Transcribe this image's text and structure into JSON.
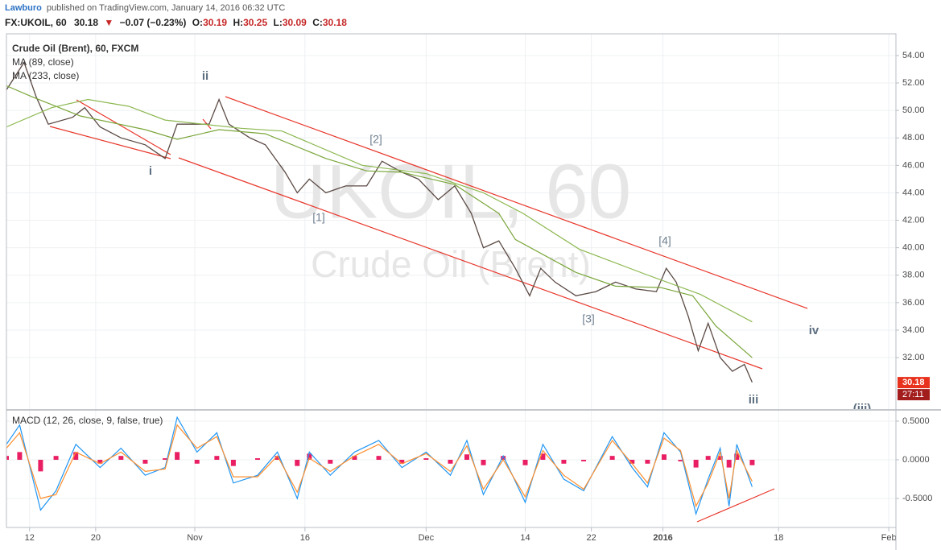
{
  "header": {
    "author": "Lawburo",
    "published": "published on TradingView.com, January 14, 2016 06:32 UTC",
    "symbol": "FX:UKOIL, 60",
    "last": 30.18,
    "arrow": "▼",
    "change": "−0.07 (−0.23%)",
    "ohlc": [
      {
        "label": "O:",
        "value": 30.19
      },
      {
        "label": "H:",
        "value": 30.25
      },
      {
        "label": "L:",
        "value": 30.09
      },
      {
        "label": "C:",
        "value": 30.18
      }
    ]
  },
  "chart_data": [
    {
      "type": "line",
      "watermark": "UKOIL, 60",
      "watermark_subtitle": "Crude Oil (Brent)",
      "xlim": [
        -2.1,
        78.65
      ],
      "ylim": [
        28.25,
        55.58
      ],
      "grid": true,
      "yticks": [
        {
          "value": 32,
          "label": "32.00"
        },
        {
          "value": 34,
          "label": "34.00"
        },
        {
          "value": 36,
          "label": "36.00"
        },
        {
          "value": 38,
          "label": "38.00"
        },
        {
          "value": 40,
          "label": "40.00"
        },
        {
          "value": 42,
          "label": "42.00"
        },
        {
          "value": 44,
          "label": "44.00"
        },
        {
          "value": 46,
          "label": "46.00"
        },
        {
          "value": 48,
          "label": "48.00"
        },
        {
          "value": 50,
          "label": "50.00"
        },
        {
          "value": 52,
          "label": "52.00"
        },
        {
          "value": 54,
          "label": "54.00"
        }
      ],
      "series": [
        {
          "name": "Crude Oil (Brent), 60, FXCM",
          "color": "#5b4a44",
          "x": [
            -2.1,
            -0.5,
            0.6,
            1.7,
            3.9,
            5.0,
            6.4,
            8.3,
            10.5,
            12.3,
            13.4,
            14.8,
            16.3,
            17.2,
            18.1,
            20.0,
            21.4,
            23.2,
            24.3,
            25.4,
            26.9,
            28.7,
            30.6,
            32.0,
            33.8,
            35.3,
            37.1,
            38.6,
            40.1,
            41.2,
            42.6,
            44.1,
            45.4,
            46.4,
            47.7,
            49.6,
            51.4,
            53.2,
            55.0,
            56.9,
            57.8,
            58.7,
            59.8,
            60.7,
            61.6,
            62.7,
            63.8,
            64.9,
            65.6
          ],
          "values": [
            51.5,
            53.5,
            51,
            49,
            49.5,
            50.2,
            48.8,
            48,
            47.5,
            46.5,
            49,
            49,
            49,
            50.8,
            49,
            48,
            47.5,
            45.5,
            44,
            45,
            44,
            44.5,
            44.5,
            46.3,
            45.5,
            45,
            43.5,
            44.5,
            42.5,
            40,
            40.5,
            38.5,
            36.5,
            38.5,
            37.5,
            36.5,
            36.8,
            37.5,
            37,
            36.8,
            38.5,
            37.5,
            35,
            32.5,
            34.5,
            32,
            31,
            31.5,
            30.2
          ]
        },
        {
          "name": "MA (89, close)",
          "color": "#7aa63a",
          "x": [
            -2.1,
            0.2,
            4.6,
            10.5,
            13.4,
            17.2,
            21.4,
            26.9,
            30.6,
            33.8,
            38.6,
            42.6,
            44.1,
            49.6,
            53.2,
            57.3,
            60.2,
            62.3,
            65.6
          ],
          "values": [
            51.8,
            51,
            49.6,
            48.6,
            47.9,
            48.6,
            48.3,
            46.5,
            45.6,
            45.5,
            44.6,
            42.5,
            40.6,
            38.2,
            37.2,
            37.1,
            36.5,
            34.3,
            32
          ]
        },
        {
          "name": "MA (233, close)",
          "color": "#8cb850",
          "x": [
            -2.1,
            2.0,
            5.3,
            9.0,
            12.3,
            19.2,
            22.9,
            30.2,
            36.0,
            41.2,
            44.8,
            49.9,
            55.8,
            60.9,
            65.6
          ],
          "values": [
            48.8,
            50.2,
            50.8,
            50.3,
            49.3,
            48.7,
            48.5,
            46,
            45.4,
            44,
            42.5,
            39.9,
            38.1,
            36.6,
            34.6
          ]
        }
      ],
      "last_price": 30.18,
      "countdown": "27:11",
      "annotations": [
        "i",
        "ii",
        "[2]",
        "[1]",
        "[4]",
        "[3]",
        "iv",
        "iii",
        "(iii)"
      ]
    },
    {
      "type": "line",
      "title": "MACD (12, 26, close, 9, false, true)",
      "xlim": [
        -2.1,
        78.65
      ],
      "ylim": [
        -0.875,
        0.635
      ],
      "grid": true,
      "xticks": [
        {
          "value": 0,
          "label": "12"
        },
        {
          "value": 6,
          "label": "20"
        },
        {
          "value": 15,
          "label": "Nov"
        },
        {
          "value": 25,
          "label": "16"
        },
        {
          "value": 36,
          "label": "Dec"
        },
        {
          "value": 45,
          "label": "14"
        },
        {
          "value": 51,
          "label": "22"
        },
        {
          "value": 57.5,
          "label": "2016"
        },
        {
          "value": 68,
          "label": "18"
        },
        {
          "value": 78,
          "label": "Feb"
        }
      ],
      "yticks": [
        {
          "value": -0.5,
          "label": "-0.5000"
        },
        {
          "value": 0,
          "label": "0.0000"
        },
        {
          "value": 0.5,
          "label": "0.5000"
        }
      ],
      "x": [
        -2.1,
        -0.9,
        1.0,
        2.4,
        4.2,
        6.4,
        8.3,
        10.5,
        12.3,
        13.4,
        15.2,
        17.0,
        18.5,
        20.7,
        22.5,
        24.3,
        25.4,
        27.3,
        29.5,
        31.7,
        33.8,
        36.0,
        38.2,
        39.7,
        41.2,
        43.0,
        45.0,
        46.6,
        48.5,
        50.3,
        52.9,
        54.7,
        56.1,
        57.6,
        59.1,
        60.5,
        61.6,
        62.7,
        63.5,
        64.2,
        65.6
      ],
      "series": [
        {
          "type": "bar",
          "color": "#e91e63",
          "values": [
            0.05,
            0.1,
            -0.15,
            0.05,
            0.1,
            -0.05,
            0.05,
            -0.05,
            0.02,
            0.1,
            -0.05,
            0.05,
            -0.08,
            0.02,
            0.05,
            -0.08,
            0.08,
            -0.05,
            0.05,
            0.05,
            -0.05,
            0.02,
            -0.05,
            0.07,
            -0.07,
            0.05,
            -0.07,
            0.08,
            -0.05,
            -0.02,
            0.05,
            -0.05,
            -0.05,
            0.07,
            -0.02,
            -0.1,
            0.05,
            0.05,
            -0.1,
            0.08,
            -0.07
          ]
        },
        {
          "color": "#2196f3",
          "values": [
            0.2,
            0.45,
            -0.65,
            -0.4,
            0.2,
            -0.1,
            0.15,
            -0.2,
            -0.1,
            0.55,
            0.1,
            0.35,
            -0.3,
            -0.2,
            0.1,
            -0.5,
            0.1,
            -0.2,
            0.1,
            0.25,
            -0.1,
            0.1,
            -0.2,
            0.25,
            -0.45,
            0.05,
            -0.55,
            0.2,
            -0.25,
            -0.4,
            0.3,
            -0.1,
            -0.35,
            0.35,
            0.1,
            -0.7,
            -0.25,
            0.15,
            -0.6,
            0.2,
            -0.35
          ]
        },
        {
          "color": "#ff8f2e",
          "values": [
            0.15,
            0.35,
            -0.5,
            -0.45,
            0.1,
            -0.05,
            0.1,
            -0.15,
            -0.12,
            0.45,
            0.15,
            0.3,
            -0.22,
            -0.22,
            0.05,
            -0.42,
            0.02,
            -0.15,
            0.05,
            0.2,
            -0.05,
            0.08,
            -0.15,
            0.18,
            -0.38,
            0,
            -0.48,
            0.12,
            -0.2,
            -0.38,
            0.25,
            -0.05,
            -0.3,
            0.28,
            0.12,
            -0.6,
            -0.3,
            0.1,
            -0.5,
            0.12,
            -0.28
          ]
        }
      ]
    }
  ]
}
